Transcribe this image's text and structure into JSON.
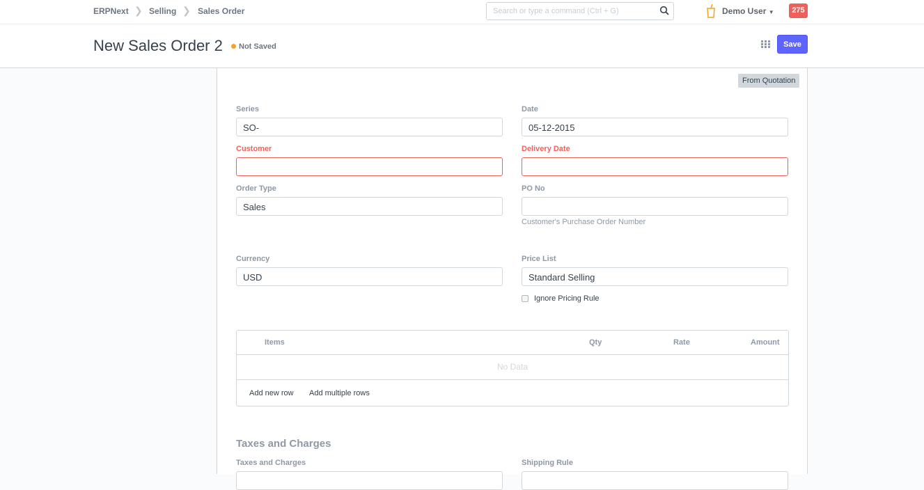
{
  "navbar": {
    "breadcrumbs": [
      "ERPNext",
      "Selling",
      "Sales Order"
    ],
    "search_placeholder": "Search or type a command (Ctrl + G)",
    "user": "Demo User",
    "notification_count": "275"
  },
  "header": {
    "title": "New Sales Order 2",
    "status": "Not Saved",
    "save_label": "Save"
  },
  "form": {
    "from_quotation": "From Quotation",
    "series": {
      "label": "Series",
      "value": "SO-"
    },
    "date": {
      "label": "Date",
      "value": "05-12-2015"
    },
    "customer": {
      "label": "Customer",
      "value": ""
    },
    "delivery_date": {
      "label": "Delivery Date",
      "value": ""
    },
    "order_type": {
      "label": "Order Type",
      "value": "Sales"
    },
    "po_no": {
      "label": "PO No",
      "value": "",
      "help": "Customer's Purchase Order Number"
    },
    "currency": {
      "label": "Currency",
      "value": "USD"
    },
    "price_list": {
      "label": "Price List",
      "value": "Standard Selling"
    },
    "ignore_pricing_rule": {
      "label": "Ignore Pricing Rule",
      "checked": false
    },
    "items_table": {
      "columns": [
        "Items",
        "Qty",
        "Rate",
        "Amount"
      ],
      "empty": "No Data",
      "add_row": "Add new row",
      "add_multiple": "Add multiple rows"
    },
    "taxes_section": "Taxes and Charges",
    "taxes_label": "Taxes and Charges",
    "shipping_label": "Shipping Rule"
  },
  "colors": {
    "primary": "#5e64ff",
    "required": "#f0605a",
    "indicator": "#f8a024"
  }
}
